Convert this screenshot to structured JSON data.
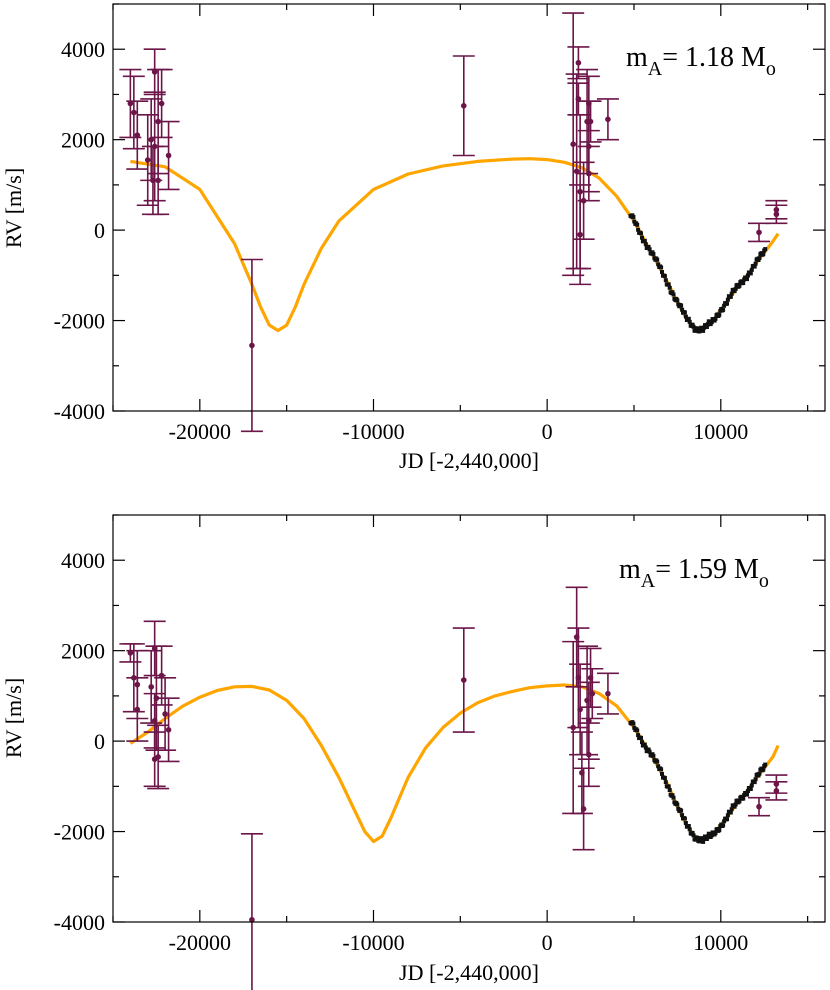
{
  "chart_data": [
    {
      "type": "scatter",
      "name": "panel-top",
      "annotation": {
        "m": "m",
        "sub_a": "A",
        "value": "= 1.18 M",
        "sub_o": "o"
      },
      "xlabel": "JD [-2,440,000]",
      "ylabel": "RV [m/s]",
      "xlim": [
        -25000,
        16000
      ],
      "ylim": [
        -4000,
        5000
      ],
      "xticks": [
        -20000,
        -10000,
        0,
        10000
      ],
      "xtick_labels": [
        "-20000",
        "-10000",
        "0",
        "10000"
      ],
      "yticks": [
        -4000,
        -2000,
        0,
        2000,
        4000
      ],
      "ytick_labels": [
        "-4000",
        "-2000",
        "0",
        "2000",
        "4000"
      ],
      "model_curve": {
        "x": [
          -24000,
          -22000,
          -20000,
          -18000,
          -17000,
          -16500,
          -16000,
          -15500,
          -15000,
          -14500,
          -14000,
          -13000,
          -12000,
          -10000,
          -8000,
          -6000,
          -4000,
          -2000,
          -1000,
          0,
          1000,
          2000,
          3000,
          4000,
          5000,
          6000,
          7000,
          7500,
          8000,
          8500,
          9000,
          9500,
          10000,
          11000,
          12000,
          13000,
          13300
        ],
        "y": [
          1520,
          1400,
          900,
          -300,
          -1200,
          -1700,
          -2100,
          -2220,
          -2100,
          -1700,
          -1200,
          -400,
          200,
          900,
          1240,
          1420,
          1520,
          1570,
          1580,
          1560,
          1500,
          1380,
          1150,
          750,
          200,
          -500,
          -1200,
          -1600,
          -1950,
          -2150,
          -2200,
          -2050,
          -1750,
          -1250,
          -750,
          -250,
          -80
        ]
      },
      "points": [
        {
          "x": -24000,
          "y": 2800,
          "err": 750
        },
        {
          "x": -23800,
          "y": 2600,
          "err": 800
        },
        {
          "x": -23600,
          "y": 2100,
          "err": 750
        },
        {
          "x": -23000,
          "y": 1550,
          "err": 1000
        },
        {
          "x": -22800,
          "y": 2000,
          "err": 900
        },
        {
          "x": -22600,
          "y": 3500,
          "err": 500
        },
        {
          "x": -22400,
          "y": 2400,
          "err": 1150
        },
        {
          "x": -22600,
          "y": 1850,
          "err": 1200
        },
        {
          "x": -22700,
          "y": 1100,
          "err": 750
        },
        {
          "x": -22400,
          "y": 1100,
          "err": 750
        },
        {
          "x": -22200,
          "y": 2800,
          "err": 750
        },
        {
          "x": -21800,
          "y": 1650,
          "err": 750
        },
        {
          "x": -17000,
          "y": -2550,
          "err": 1900
        },
        {
          "x": -4800,
          "y": 2750,
          "err": 1100
        },
        {
          "x": 1500,
          "y": 1900,
          "err": 2900
        },
        {
          "x": 1700,
          "y": 1300,
          "err": 2150
        },
        {
          "x": 1800,
          "y": 3700,
          "err": 350
        },
        {
          "x": 1800,
          "y": 2900,
          "err": 350
        },
        {
          "x": 1900,
          "y": 850,
          "err": 1700
        },
        {
          "x": 1900,
          "y": -100,
          "err": 1100
        },
        {
          "x": 2100,
          "y": 650,
          "err": 850
        },
        {
          "x": 2300,
          "y": 2400,
          "err": 1150
        },
        {
          "x": 2400,
          "y": 1850,
          "err": 1000
        },
        {
          "x": 2400,
          "y": 2800,
          "err": 600
        },
        {
          "x": 2500,
          "y": 2400,
          "err": 450
        },
        {
          "x": 2400,
          "y": 1250,
          "err": 600
        },
        {
          "x": 3500,
          "y": 2450,
          "err": 450
        },
        {
          "x": 12200,
          "y": -50,
          "err": 200
        },
        {
          "x": 13200,
          "y": 450,
          "err": 200
        },
        {
          "x": 13200,
          "y": 350,
          "err": 200
        }
      ]
    },
    {
      "type": "scatter",
      "name": "panel-bottom",
      "annotation": {
        "m": "m",
        "sub_a": "A",
        "value": "= 1.59 M",
        "sub_o": "o"
      },
      "xlabel": "JD [-2,440,000]",
      "ylabel": "RV [m/s]",
      "xlim": [
        -25000,
        16000
      ],
      "ylim": [
        -4000,
        5000
      ],
      "xticks": [
        -20000,
        -10000,
        0,
        10000
      ],
      "xtick_labels": [
        "-20000",
        "-10000",
        "0",
        "10000"
      ],
      "yticks": [
        -4000,
        -2000,
        0,
        2000,
        4000
      ],
      "ytick_labels": [
        "-4000",
        "-2000",
        "0",
        "2000",
        "4000"
      ],
      "model_curve": {
        "x": [
          -24000,
          -23000,
          -22000,
          -21000,
          -20000,
          -19000,
          -18000,
          -17000,
          -16000,
          -15000,
          -14000,
          -13000,
          -12000,
          -11000,
          -10500,
          -10000,
          -9500,
          -9000,
          -8500,
          -8000,
          -7000,
          -6000,
          -5000,
          -4000,
          -3000,
          -2000,
          -1000,
          0,
          1000,
          2000,
          3000,
          4000,
          5000,
          6000,
          7000,
          7500,
          8000,
          8500,
          9000,
          9500,
          10000,
          11000,
          12000,
          13000,
          13300
        ],
        "y": [
          -50,
          200,
          500,
          770,
          970,
          1120,
          1200,
          1210,
          1130,
          900,
          500,
          -100,
          -800,
          -1600,
          -2000,
          -2220,
          -2100,
          -1700,
          -1250,
          -800,
          -150,
          300,
          620,
          850,
          1000,
          1100,
          1180,
          1220,
          1240,
          1200,
          1050,
          780,
          300,
          -300,
          -1000,
          -1450,
          -1850,
          -2100,
          -2200,
          -2100,
          -1850,
          -1350,
          -850,
          -350,
          -100
        ]
      },
      "points": [
        {
          "x": -24000,
          "y": 1950,
          "err": 200
        },
        {
          "x": -23800,
          "y": 1400,
          "err": 750
        },
        {
          "x": -23600,
          "y": 1250,
          "err": 750
        },
        {
          "x": -23600,
          "y": 700,
          "err": 700
        },
        {
          "x": -22800,
          "y": 1200,
          "err": 800
        },
        {
          "x": -22600,
          "y": 2050,
          "err": 600
        },
        {
          "x": -22600,
          "y": 450,
          "err": 600
        },
        {
          "x": -22600,
          "y": -400,
          "err": 600
        },
        {
          "x": -22500,
          "y": 950,
          "err": 1150
        },
        {
          "x": -22400,
          "y": -350,
          "err": 700
        },
        {
          "x": -22200,
          "y": 1450,
          "err": 650
        },
        {
          "x": -22000,
          "y": 600,
          "err": 800
        },
        {
          "x": -21800,
          "y": 250,
          "err": 700
        },
        {
          "x": -17000,
          "y": -3950,
          "err": 1900
        },
        {
          "x": -4800,
          "y": 1350,
          "err": 1150
        },
        {
          "x": 1500,
          "y": 300,
          "err": 1900
        },
        {
          "x": 1700,
          "y": 2300,
          "err": 1100
        },
        {
          "x": 1800,
          "y": 1400,
          "err": 1100
        },
        {
          "x": 1900,
          "y": 700,
          "err": 1000
        },
        {
          "x": 2000,
          "y": -700,
          "err": 900
        },
        {
          "x": 2100,
          "y": -1500,
          "err": 900
        },
        {
          "x": 2300,
          "y": 900,
          "err": 1200
        },
        {
          "x": 2400,
          "y": 450,
          "err": 850
        },
        {
          "x": 2500,
          "y": 1400,
          "err": 650
        },
        {
          "x": 2400,
          "y": -300,
          "err": 700
        },
        {
          "x": 2600,
          "y": 1050,
          "err": 550
        },
        {
          "x": 3500,
          "y": 1050,
          "err": 450
        },
        {
          "x": 12200,
          "y": -1450,
          "err": 200
        },
        {
          "x": 13200,
          "y": -950,
          "err": 200
        },
        {
          "x": 13200,
          "y": -1100,
          "err": 200
        }
      ]
    }
  ]
}
